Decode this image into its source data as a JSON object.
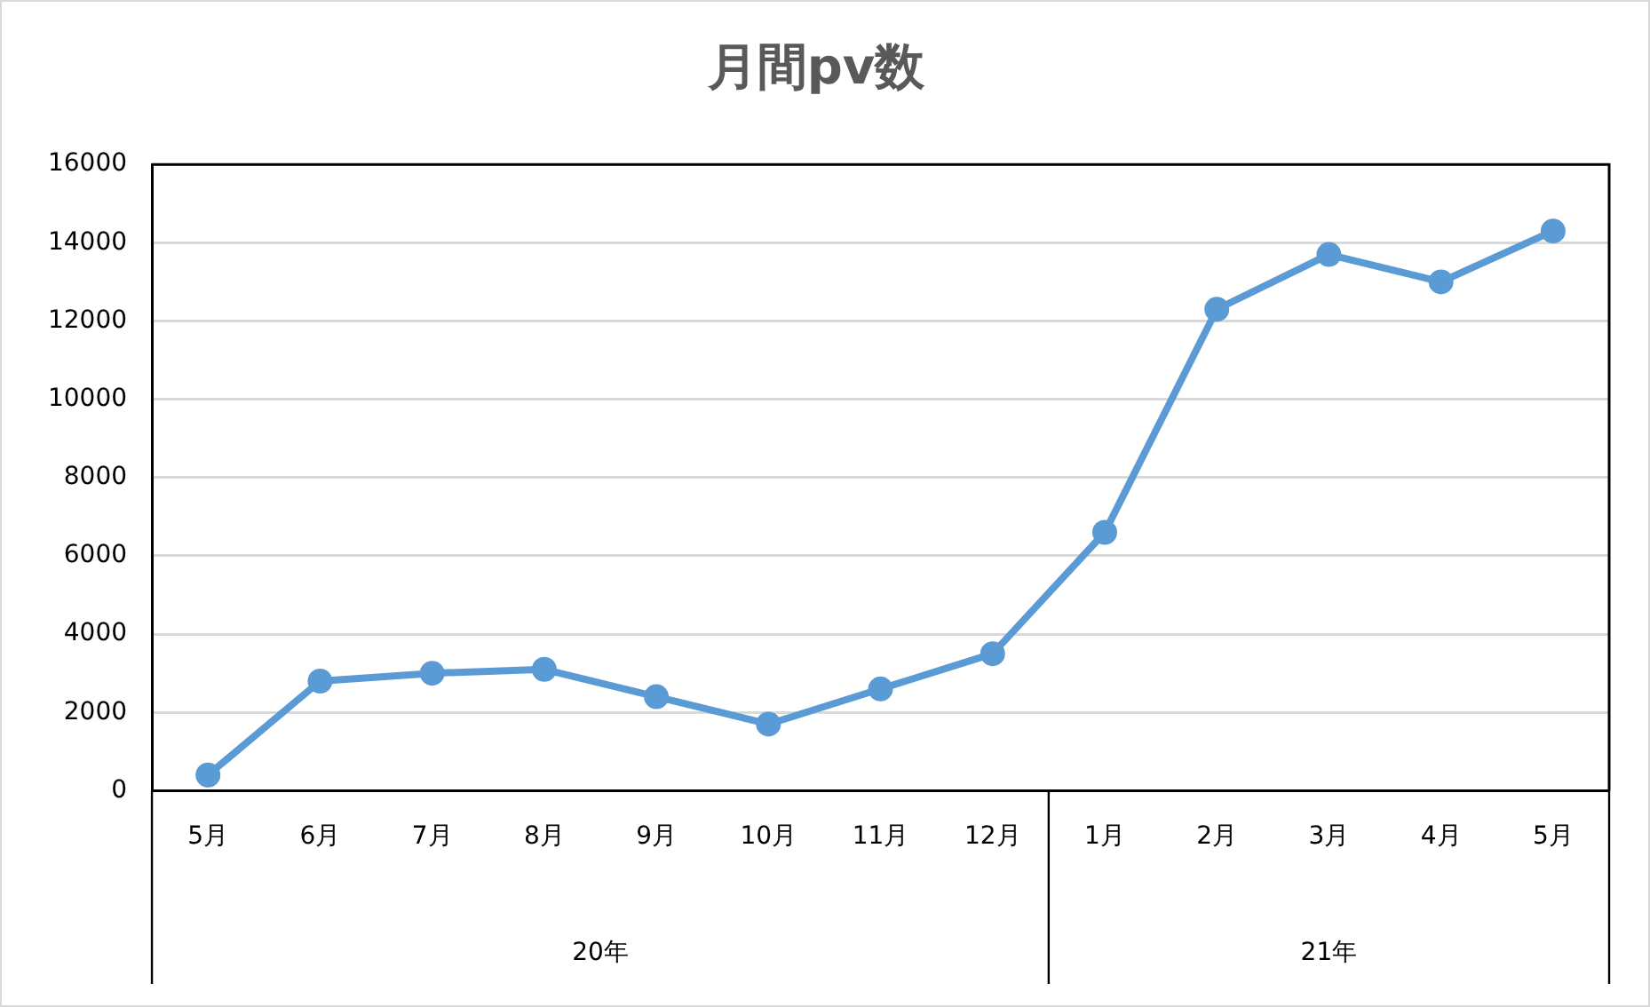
{
  "chart_data": {
    "type": "line",
    "title": "月間pv数",
    "categories": [
      "5月",
      "6月",
      "7月",
      "8月",
      "9月",
      "10月",
      "11月",
      "12月",
      "1月",
      "2月",
      "3月",
      "4月",
      "5月"
    ],
    "series": [
      {
        "color": "#5b9bd5",
        "values": [
          400,
          2800,
          3000,
          3100,
          2400,
          1700,
          2600,
          3500,
          6600,
          12300,
          13700,
          13000,
          14300
        ]
      }
    ],
    "annotations": [
      "20年",
      "21年"
    ],
    "ylim": [
      0,
      16000
    ],
    "yticks": [
      0,
      2000,
      4000,
      6000,
      8000,
      10000,
      12000,
      14000,
      16000
    ],
    "grid": "y",
    "legend": false,
    "marker": "circle",
    "line_style": "solid"
  }
}
